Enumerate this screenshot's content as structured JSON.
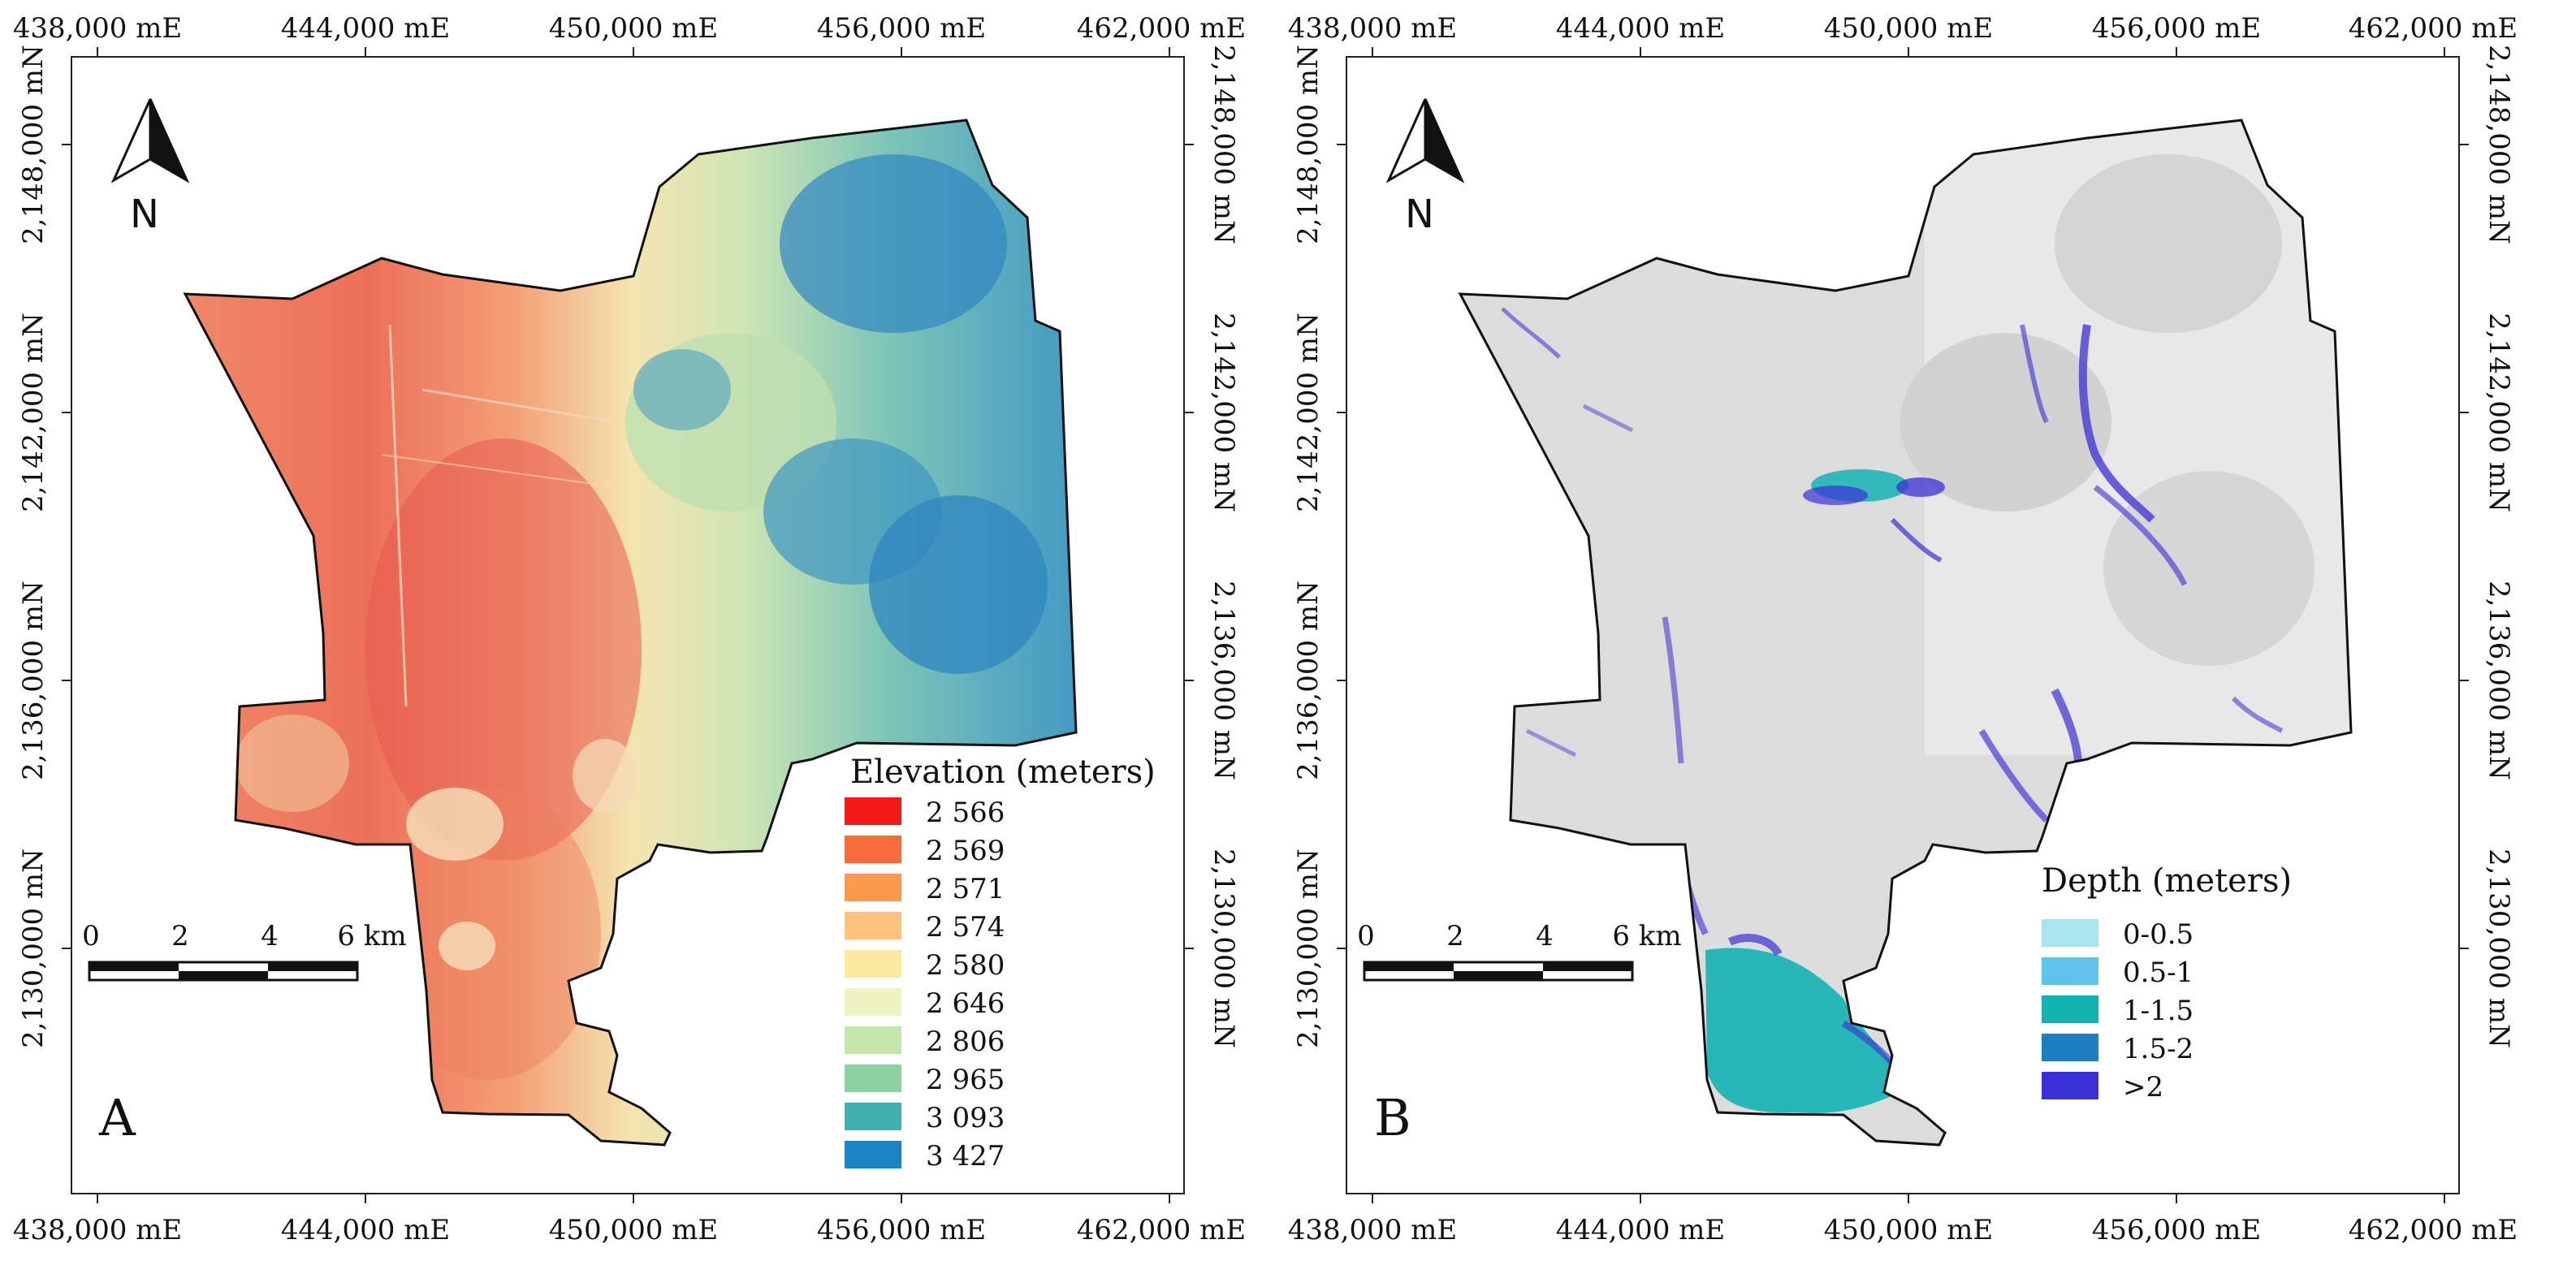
{
  "panels": [
    {
      "letter": "A",
      "coords": {
        "top": [
          "438,000 mE",
          "444,000 mE",
          "450,000 mE",
          "456,000 mE",
          "462,000 mE"
        ],
        "bottom": [
          "438,000 mE",
          "444,000 mE",
          "450,000 mE",
          "456,000 mE",
          "462,000 mE"
        ],
        "left": [
          "2,148,000 mN",
          "2,142,000 mN",
          "2,136,000 mN",
          "2,130,000 mN"
        ],
        "right": [
          "2,148,000 mN",
          "2,142,000 mN",
          "2,136,000 mN",
          "2,130,000 mN"
        ]
      },
      "north": "N",
      "scale": {
        "labels": [
          "0",
          "2",
          "4",
          "6 km"
        ]
      },
      "legend": {
        "title": "Elevation (meters)",
        "items": [
          {
            "label": "2 566",
            "color": "#f21a1a"
          },
          {
            "label": "2 569",
            "color": "#fb6a3c"
          },
          {
            "label": "2 571",
            "color": "#fb9a4e"
          },
          {
            "label": "2 574",
            "color": "#fdc27b"
          },
          {
            "label": "2 580",
            "color": "#fde89f"
          },
          {
            "label": "2 646",
            "color": "#eef3bf"
          },
          {
            "label": "2 806",
            "color": "#c4e6a8"
          },
          {
            "label": "2 965",
            "color": "#8fd0a0"
          },
          {
            "label": "3 093",
            "color": "#3fb0ae"
          },
          {
            "label": "3 427",
            "color": "#1b84c2"
          }
        ]
      }
    },
    {
      "letter": "B",
      "coords": {
        "top": [
          "438,000 mE",
          "444,000 mE",
          "450,000 mE",
          "456,000 mE",
          "462,000 mE"
        ],
        "bottom": [
          "438,000 mE",
          "444,000 mE",
          "450,000 mE",
          "456,000 mE",
          "462,000 mE"
        ],
        "left": [
          "2,148,000 mN",
          "2,142,000 mN",
          "2,136,000 mN",
          "2,130,000 mN"
        ],
        "right": [
          "2,148,000 mN",
          "2,142,000 mN",
          "2,136,000 mN",
          "2,130,000 mN"
        ]
      },
      "north": "N",
      "scale": {
        "labels": [
          "0",
          "2",
          "4",
          "6 km"
        ]
      },
      "legend": {
        "title": "Depth (meters)",
        "items": [
          {
            "label": "0-0.5",
            "color": "#a8e6ee"
          },
          {
            "label": "0.5-1",
            "color": "#5fc3ea"
          },
          {
            "label": "1-1.5",
            "color": "#14b3b3"
          },
          {
            "label": "1.5-2",
            "color": "#1d7fc0"
          },
          {
            "label": ">2",
            "color": "#3b2fd6"
          }
        ]
      }
    }
  ]
}
